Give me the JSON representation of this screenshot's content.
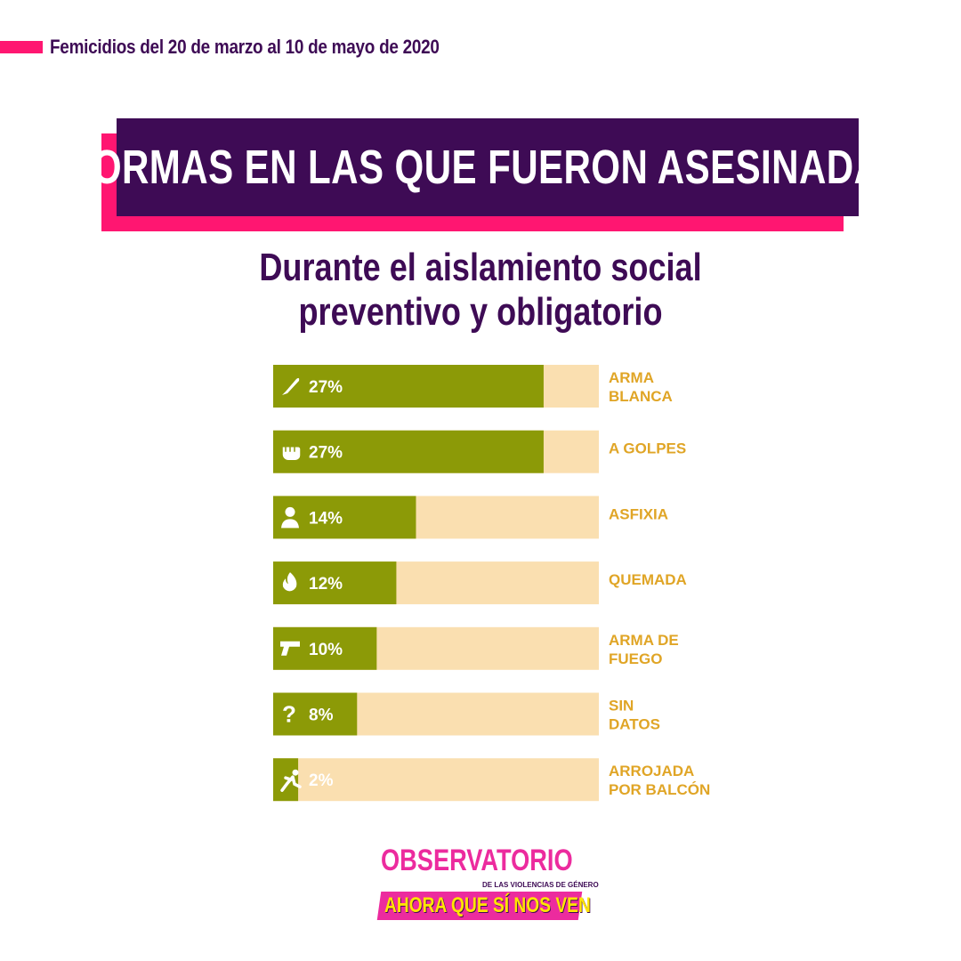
{
  "header": {
    "text": "Femicidios del 20 de marzo al 10 de mayo de 2020"
  },
  "title": "FORMAS EN LAS QUE FUERON ASESINADAS",
  "subtitle": {
    "line1": "Durante el aislamiento social",
    "line2": "preventivo y obligatorio"
  },
  "colors": {
    "accent_pink": "#ff1671",
    "dark_purple": "#3e0b55",
    "bar_fill": "#8c9a07",
    "bar_track": "#fadfb0",
    "label_color": "#e0a526"
  },
  "chart_data": {
    "type": "bar",
    "orientation": "horizontal",
    "title": "FORMAS EN LAS QUE FUERON ASESINADAS",
    "subtitle": "Durante el aislamiento social preventivo y obligatorio",
    "xlim": [
      0,
      100
    ],
    "grid": false,
    "categories": [
      [
        "ARMA",
        "BLANCA"
      ],
      [
        "A GOLPES"
      ],
      [
        "ASFIXIA"
      ],
      [
        "QUEMADA"
      ],
      [
        "ARMA DE",
        "FUEGO"
      ],
      [
        "SIN",
        "DATOS"
      ],
      [
        "ARROJADA",
        "POR BALCÓN"
      ]
    ],
    "values": [
      27,
      27,
      14,
      12,
      10,
      8,
      2
    ],
    "value_labels": [
      "27%",
      "27%",
      "14%",
      "12%",
      "10%",
      "8%",
      "2%"
    ],
    "icons": [
      "knife-icon",
      "fist-icon",
      "asphyxia-icon",
      "flame-icon",
      "gun-icon",
      "question-icon",
      "falling-person-icon"
    ]
  },
  "logo": {
    "top": "OBSERVATORIO",
    "small": "DE LAS VIOLENCIAS DE GÉNERO",
    "bottom": "AHORA QUE SÍ NOS VEN"
  }
}
